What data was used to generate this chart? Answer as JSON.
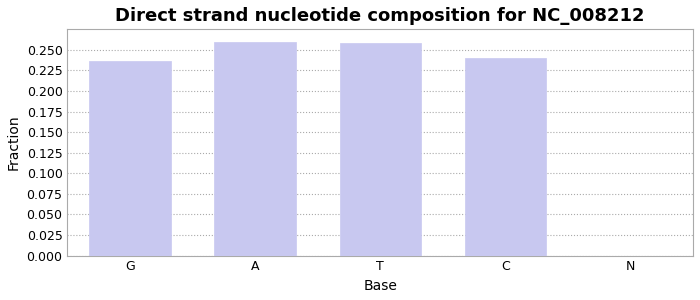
{
  "title": "Direct strand nucleotide composition for NC_008212",
  "xlabel": "Base",
  "ylabel": "Fraction",
  "categories": [
    "G",
    "A",
    "T",
    "C",
    "N"
  ],
  "values": [
    0.237,
    0.26,
    0.258,
    0.24,
    0.0
  ],
  "bar_color": "#c8c8f0",
  "bar_edgecolor": "#c8c8f0",
  "ylim": [
    0.0,
    0.275
  ],
  "yticks": [
    0.0,
    0.025,
    0.05,
    0.075,
    0.1,
    0.125,
    0.15,
    0.175,
    0.2,
    0.225,
    0.25
  ],
  "title_fontsize": 13,
  "axis_fontsize": 10,
  "tick_fontsize": 9,
  "bar_width": 0.65,
  "grid_color": "#aaaaaa",
  "bg_color": "#ffffff",
  "fig_color": "#ffffff",
  "spine_color": "#aaaaaa"
}
